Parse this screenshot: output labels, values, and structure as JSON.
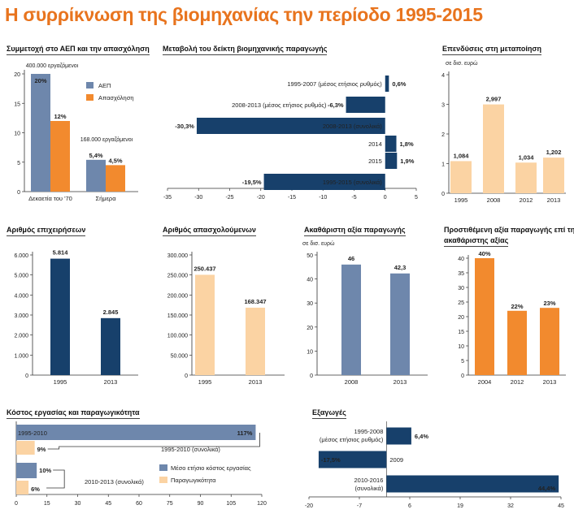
{
  "title": "Η συρρίκνωση της βιομηχανίας την περίοδο 1995-2015",
  "colors": {
    "blue": "#6e87ac",
    "orange": "#f28a2e",
    "navy": "#17406b",
    "peach": "#fbd3a3",
    "title": "#e8741e"
  },
  "chart_data": [
    {
      "id": "gdp-employment",
      "type": "bar",
      "title": "Συμμετοχή στο ΑΕΠ και την απασχόληση",
      "categories": [
        "Δεκαετία του '70",
        "Σήμερα"
      ],
      "series": [
        {
          "name": "ΑΕΠ",
          "values": [
            20,
            5.4
          ],
          "labels": [
            "20%",
            "5,4%"
          ]
        },
        {
          "name": "Απασχόληση",
          "values": [
            12,
            4.5
          ],
          "labels": [
            "12%",
            "4,5%"
          ]
        }
      ],
      "annotations": [
        "400.000 εργαζόμενοι",
        "168.000 εργαζόμενοι"
      ],
      "ylim": [
        0,
        20
      ],
      "yticks": [
        0,
        5,
        10,
        15,
        20
      ],
      "ytick_labels": [
        "0",
        "5",
        "10",
        "15",
        "20"
      ]
    },
    {
      "id": "production-index",
      "type": "bar",
      "orientation": "horizontal",
      "title": "Μεταβολή του δείκτη βιομηχανικής παραγωγής",
      "categories": [
        "1995-2007 (μέσος ετήσιος ρυθμός)",
        "2008-2013 (μέσος ετήσιος ρυθμός)",
        "2008-2013 (συνολικά)",
        "2014",
        "2015",
        "1995-2015 (συνολικά)"
      ],
      "values": [
        0.6,
        -6.3,
        -30.3,
        1.8,
        1.9,
        -19.5
      ],
      "labels": [
        "0,6%",
        "-6,3%",
        "-30,3%",
        "1,8%",
        "1,9%",
        "-19,5%"
      ],
      "label_inside": [
        false,
        false,
        true,
        false,
        false,
        true
      ],
      "xlim": [
        -35,
        5
      ],
      "xticks": [
        -35,
        -30,
        -25,
        -20,
        -15,
        -10,
        -5,
        0,
        5
      ],
      "xtick_labels": [
        "-35",
        "-30",
        "-25",
        "-20",
        "-15",
        "-10",
        "-5",
        "0",
        "5"
      ]
    },
    {
      "id": "investment",
      "type": "bar",
      "title": "Επενδύσεις στη μεταποίηση",
      "unit": "σε δισ. ευρώ",
      "categories": [
        "1995",
        "2008",
        "2012",
        "2013"
      ],
      "values": [
        1.084,
        2.997,
        1.034,
        1.202
      ],
      "labels": [
        "1,084",
        "2,997",
        "1,034",
        "1,202"
      ],
      "ylim": [
        0,
        4
      ],
      "yticks": [
        0,
        1,
        2,
        3,
        4
      ],
      "ytick_labels": [
        "0",
        "1",
        "2",
        "3",
        "4"
      ]
    },
    {
      "id": "firms",
      "type": "bar",
      "title": "Αριθμός επιχειρήσεων",
      "categories": [
        "1995",
        "2013"
      ],
      "values": [
        5814,
        2845
      ],
      "labels": [
        "5.814",
        "2.845"
      ],
      "ylim": [
        0,
        6000
      ],
      "yticks": [
        0,
        1000,
        2000,
        3000,
        4000,
        5000,
        6000
      ],
      "ytick_labels": [
        "0",
        "1.000",
        "2.000",
        "3.000",
        "4.000",
        "5.000",
        "6.000"
      ]
    },
    {
      "id": "employees",
      "type": "bar",
      "title": "Αριθμός απασχολούμενων",
      "categories": [
        "1995",
        "2013"
      ],
      "values": [
        250437,
        168347
      ],
      "labels": [
        "250.437",
        "168.347"
      ],
      "ylim": [
        0,
        300000
      ],
      "yticks": [
        0,
        50000,
        100000,
        150000,
        200000,
        250000,
        300000
      ],
      "ytick_labels": [
        "0",
        "50.000",
        "100.000",
        "150.000",
        "200.000",
        "250.000",
        "300.000"
      ]
    },
    {
      "id": "gross-output",
      "type": "bar",
      "title": "Ακαθάριστη αξία παραγωγής",
      "unit": "σε δισ. ευρώ",
      "categories": [
        "2008",
        "2013"
      ],
      "values": [
        46,
        42.3
      ],
      "labels": [
        "46",
        "42,3"
      ],
      "ylim": [
        0,
        50
      ],
      "yticks": [
        0,
        10,
        20,
        30,
        40,
        50
      ],
      "ytick_labels": [
        "0",
        "10",
        "20",
        "30",
        "40",
        "50"
      ]
    },
    {
      "id": "value-added",
      "type": "bar",
      "title": "Προστιθέμενη αξία παραγωγής επί της ακαθάριστης αξίας",
      "title_lines": [
        "Προστιθέμενη αξία παραγωγής επί της",
        "ακαθάριστης αξίας"
      ],
      "categories": [
        "2004",
        "2012",
        "2013"
      ],
      "values": [
        40,
        22,
        23
      ],
      "labels": [
        "40%",
        "22%",
        "23%"
      ],
      "ylim": [
        0,
        40
      ],
      "yticks": [
        0,
        5,
        10,
        15,
        20,
        25,
        30,
        35,
        40
      ],
      "ytick_labels": [
        "0",
        "5",
        "10",
        "15",
        "20",
        "25",
        "30",
        "35",
        "40"
      ]
    },
    {
      "id": "labour-cost",
      "type": "bar",
      "orientation": "horizontal",
      "title": "Κόστος εργασίας και παραγωγικότητα",
      "series": [
        {
          "name": "Μέσο ετήσιο κόστος εργασίας",
          "values": [
            117,
            10
          ],
          "labels": [
            "117%",
            "10%"
          ]
        },
        {
          "name": "Παραγωγικότητα",
          "values": [
            9,
            6
          ],
          "labels": [
            "9%",
            "6%"
          ]
        }
      ],
      "group_labels": [
        "1995-2010",
        "1995-2010 (συνολικά)",
        "2010-2013 (συνολικά)"
      ],
      "xlim": [
        0,
        120
      ],
      "xticks": [
        0,
        15,
        30,
        45,
        60,
        75,
        90,
        105,
        120
      ],
      "xtick_labels": [
        "0",
        "15",
        "30",
        "45",
        "60",
        "75",
        "90",
        "105",
        "120"
      ]
    },
    {
      "id": "exports",
      "type": "bar",
      "orientation": "horizontal",
      "title": "Εξαγωγές",
      "categories": [
        [
          "1995-2008",
          "(μέσος ετήσιος ρυθμός)"
        ],
        [
          "2009"
        ],
        [
          "2010-2016",
          "(συνολικά)"
        ]
      ],
      "values": [
        6.4,
        -17.5,
        44.4
      ],
      "labels": [
        "6,4%",
        "-17,5%",
        "44,4%"
      ],
      "xlim": [
        -20,
        45
      ],
      "xticks": [
        -20,
        -7,
        6,
        19,
        32,
        45
      ],
      "xtick_labels": [
        "-20",
        "-7",
        "6",
        "19",
        "32",
        "45"
      ]
    }
  ]
}
